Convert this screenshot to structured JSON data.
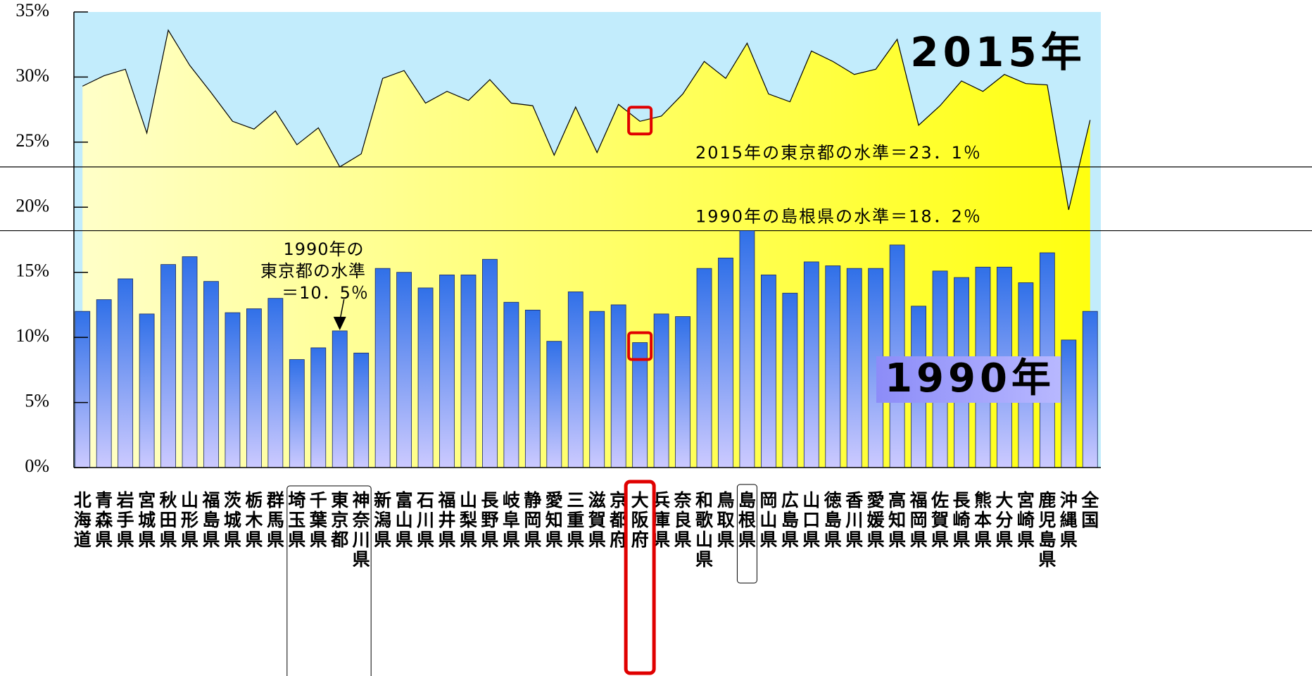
{
  "chart_data": {
    "type": "bar-area",
    "categories": [
      "北海道",
      "青森県",
      "岩手県",
      "宮城県",
      "秋田県",
      "山形県",
      "福島県",
      "茨城県",
      "栃木県",
      "群馬県",
      "埼玉県",
      "千葉県",
      "東京都",
      "神奈川県",
      "新潟県",
      "富山県",
      "石川県",
      "福井県",
      "山梨県",
      "長野県",
      "岐阜県",
      "静岡県",
      "愛知県",
      "三重県",
      "滋賀県",
      "京都府",
      "大阪府",
      "兵庫県",
      "奈良県",
      "和歌山県",
      "鳥取県",
      "島根県",
      "岡山県",
      "広島県",
      "山口県",
      "徳島県",
      "香川県",
      "愛媛県",
      "高知県",
      "福岡県",
      "佐賀県",
      "長崎県",
      "熊本県",
      "大分県",
      "宮崎県",
      "鹿児島県",
      "沖縄県",
      "全国"
    ],
    "series": [
      {
        "name": "2015年",
        "type": "area",
        "color": "#ffff30",
        "values": [
          29.3,
          30.1,
          30.6,
          25.7,
          33.6,
          30.9,
          28.8,
          26.6,
          26.0,
          27.4,
          24.8,
          26.1,
          23.1,
          24.1,
          29.9,
          30.5,
          28.0,
          28.9,
          28.2,
          29.8,
          28.0,
          27.8,
          24.0,
          27.7,
          24.2,
          27.9,
          26.6,
          27.0,
          28.7,
          31.2,
          29.9,
          32.6,
          28.7,
          28.1,
          32.0,
          31.2,
          30.2,
          30.6,
          32.9,
          26.3,
          27.8,
          29.7,
          28.9,
          30.2,
          29.5,
          29.4,
          19.8,
          26.7
        ]
      },
      {
        "name": "1990年",
        "type": "bar",
        "color": "#3a78e8",
        "values": [
          12.0,
          12.9,
          14.5,
          11.8,
          15.6,
          16.2,
          14.3,
          11.9,
          12.2,
          13.0,
          8.3,
          9.2,
          10.5,
          8.8,
          15.3,
          15.0,
          13.8,
          14.8,
          14.8,
          16.0,
          12.7,
          12.1,
          9.7,
          13.5,
          12.0,
          12.5,
          9.6,
          11.8,
          11.6,
          15.3,
          16.1,
          18.2,
          14.8,
          13.4,
          15.8,
          15.5,
          15.3,
          15.3,
          17.1,
          12.4,
          15.1,
          14.6,
          15.4,
          15.4,
          14.2,
          16.5,
          9.8,
          12.0
        ]
      }
    ],
    "ylim": [
      0,
      35
    ],
    "yticks": [
      {
        "value": 0,
        "label": "0%"
      },
      {
        "value": 5,
        "label": "5%"
      },
      {
        "value": 10,
        "label": "10%"
      },
      {
        "value": 15,
        "label": "15%"
      },
      {
        "value": 20,
        "label": "20%"
      },
      {
        "value": 25,
        "label": "25%"
      },
      {
        "value": 30,
        "label": "30%"
      },
      {
        "value": 35,
        "label": "35%"
      }
    ],
    "reference_lines": [
      {
        "value": 23.1,
        "label": "2015年の東京都の水準＝23．1％"
      },
      {
        "value": 18.2,
        "label": "1990年の島根県の水準＝18．2％"
      }
    ],
    "annotation": [
      "1990年の",
      "東京都の水準",
      "＝10．5％"
    ]
  }
}
